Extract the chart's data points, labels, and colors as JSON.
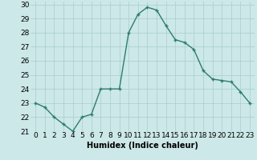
{
  "x": [
    0,
    1,
    2,
    3,
    4,
    5,
    6,
    7,
    8,
    9,
    10,
    11,
    12,
    13,
    14,
    15,
    16,
    17,
    18,
    19,
    20,
    21,
    22,
    23
  ],
  "y": [
    23,
    22.7,
    22,
    21.5,
    21,
    22,
    22.2,
    24,
    24,
    24,
    28,
    29.3,
    29.8,
    29.6,
    28.5,
    27.5,
    27.3,
    26.8,
    25.3,
    24.7,
    24.6,
    24.5,
    23.8,
    23
  ],
  "line_color": "#2e7d6e",
  "marker": "+",
  "marker_color": "#2e7d6e",
  "bg_color": "#cce8e8",
  "grid_color": "#aacccc",
  "xlabel": "Humidex (Indice chaleur)",
  "xlim": [
    -0.5,
    23.5
  ],
  "ylim": [
    21,
    30.2
  ],
  "yticks": [
    21,
    22,
    23,
    24,
    25,
    26,
    27,
    28,
    29,
    30
  ],
  "xticks": [
    0,
    1,
    2,
    3,
    4,
    5,
    6,
    7,
    8,
    9,
    10,
    11,
    12,
    13,
    14,
    15,
    16,
    17,
    18,
    19,
    20,
    21,
    22,
    23
  ],
  "xlabel_fontsize": 7,
  "tick_fontsize": 6.5,
  "linewidth": 1.0,
  "markersize": 3.5
}
